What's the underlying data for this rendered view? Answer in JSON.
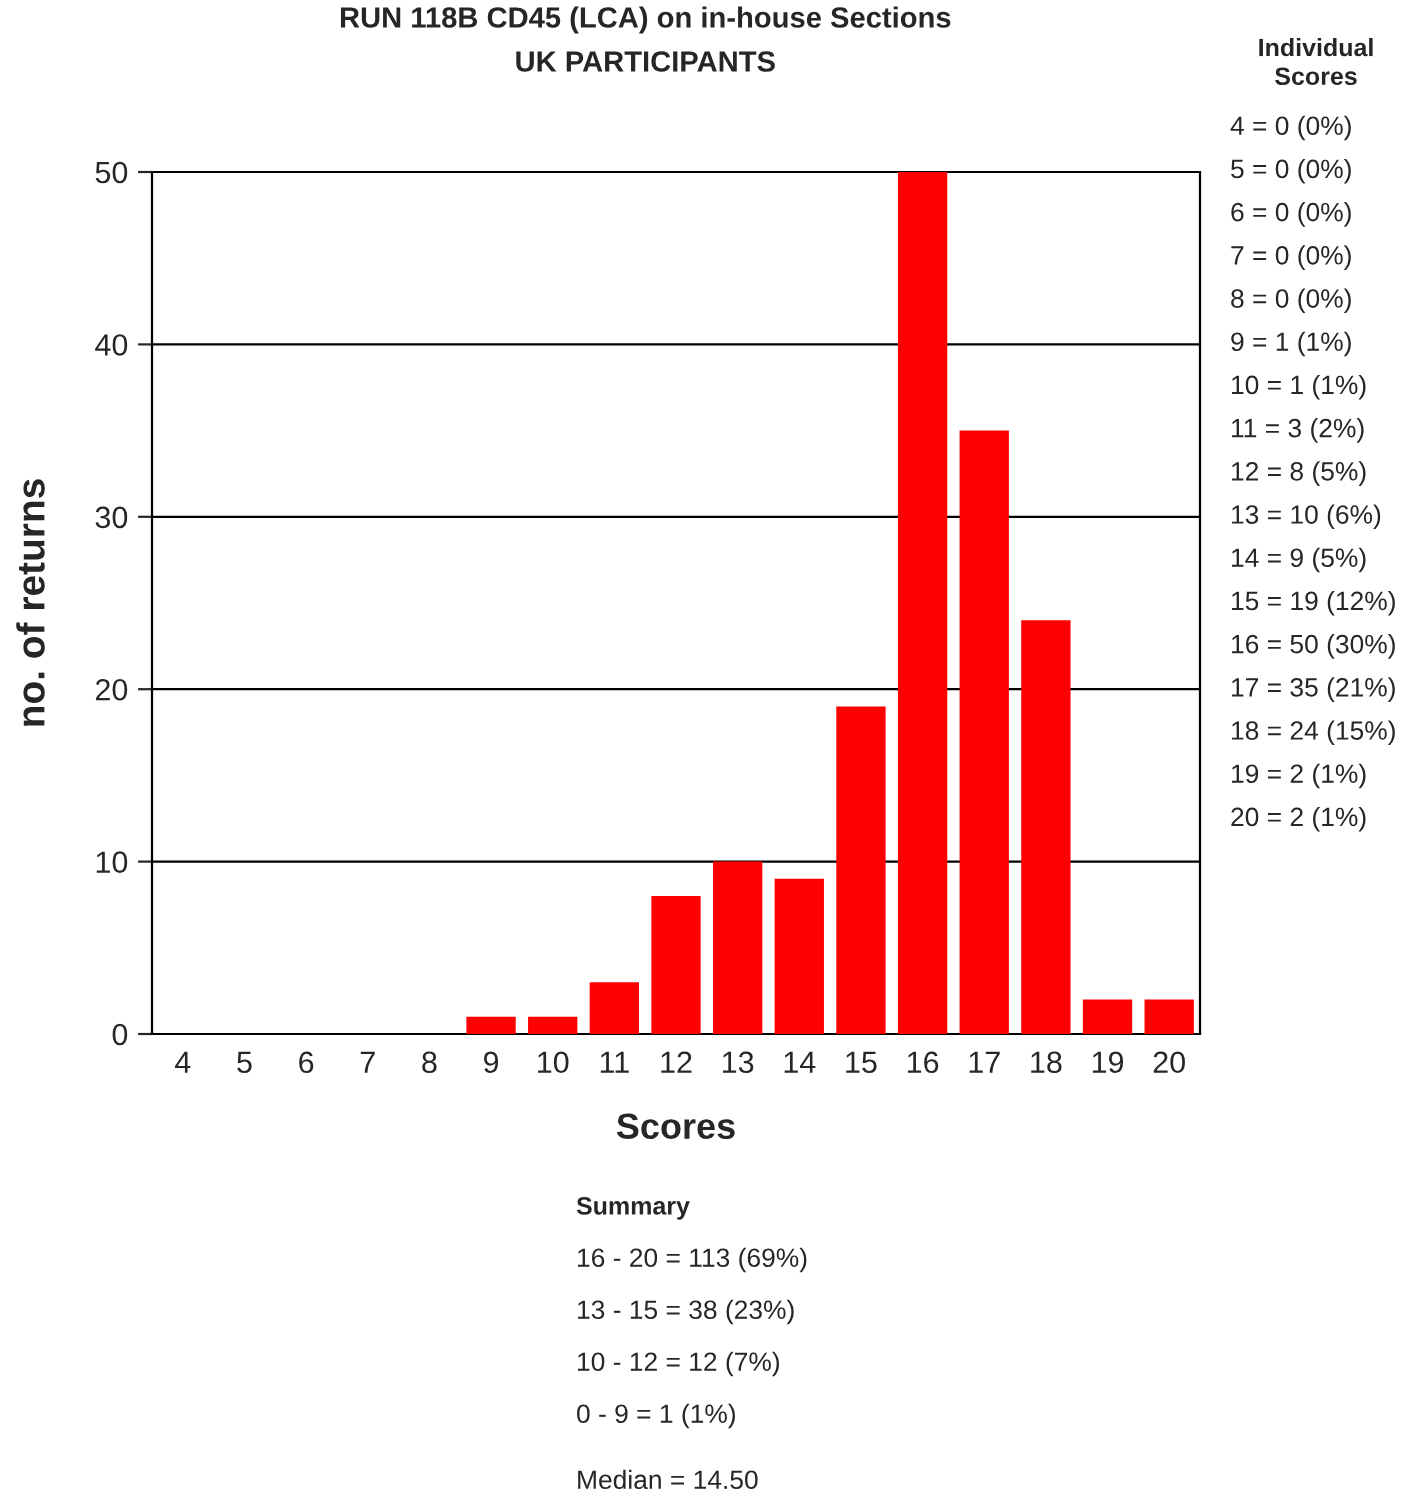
{
  "chart_data": {
    "type": "bar",
    "title": "RUN 118B CD45 (LCA) on in-house Sections",
    "subtitle": "UK PARTICIPANTS",
    "xlabel": "Scores",
    "ylabel": "no. of returns",
    "categories": [
      "4",
      "5",
      "6",
      "7",
      "8",
      "9",
      "10",
      "11",
      "12",
      "13",
      "14",
      "15",
      "16",
      "17",
      "18",
      "19",
      "20"
    ],
    "values": [
      0,
      0,
      0,
      0,
      0,
      1,
      1,
      3,
      8,
      10,
      9,
      19,
      50,
      35,
      24,
      2,
      2
    ],
    "color": "#ff0000",
    "ylim": [
      0,
      50
    ],
    "yticks": [
      0,
      10,
      20,
      30,
      40,
      50
    ],
    "grid": "y",
    "annotations": [
      "Individual\nScores",
      "4 = 0 (0%)",
      "5 = 0 (0%)",
      "6 = 0 (0%)",
      "7 = 0 (0%)",
      "8 = 0 (0%)",
      "9 = 1 (1%)",
      "10 = 1 (1%)",
      "11 = 3 (2%)",
      "12 = 8 (5%)",
      "13 = 10 (6%)",
      "14 = 9 (5%)",
      "15 = 19 (12%)",
      "16 = 50 (30%)",
      "17 = 35 (21%)",
      "18 = 24 (15%)",
      "19 = 2 (1%)",
      "20 = 2 (1%)",
      "Summary",
      "16 - 20 = 113 (69%)",
      "13 - 15 = 38 (23%)",
      "10 - 12 = 12 (7%)",
      "0 - 9 = 1 (1%)",
      "Median = 14.50"
    ]
  }
}
